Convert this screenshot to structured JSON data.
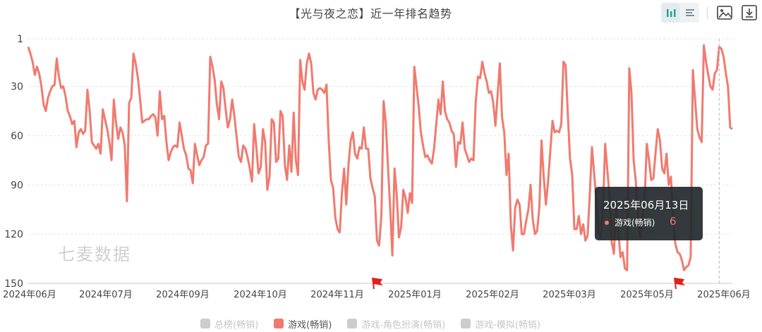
{
  "title": "【光与夜之恋】近一年排名趋势",
  "toolbar": {
    "icons": [
      "bar-chart-icon",
      "list-icon",
      "image-icon",
      "download-icon"
    ]
  },
  "watermark": "七麦数据",
  "tooltip": {
    "date": "2025年06月13日",
    "series_name": "游戏(畅销)",
    "value": "6"
  },
  "legend": [
    {
      "label": "总榜(畅销)",
      "active": false
    },
    {
      "label": "游戏(畅销)",
      "active": true
    },
    {
      "label": "游戏-角色扮演(畅销)",
      "active": false
    },
    {
      "label": "游戏-模拟(畅销)",
      "active": false
    }
  ],
  "colors": {
    "series": "#f07a6e",
    "grid": "#e3e3e3",
    "flag": "#e02020"
  },
  "chart_data": {
    "type": "line",
    "title": "【光与夜之恋】近一年排名趋势",
    "y_reversed": true,
    "ylim": [
      1,
      150
    ],
    "y_ticks": [
      "1",
      "30",
      "60",
      "90",
      "120",
      "150"
    ],
    "x_tick_labels": [
      "2024年06月",
      "2024年07月",
      "2024年09月",
      "2024年10月",
      "2024年11月",
      "2025年01月",
      "2025年02月",
      "2025年03月",
      "2025年05月",
      "2025年06月"
    ],
    "series": [
      {
        "name": "游戏(畅销)",
        "values": [
          6,
          10,
          15,
          23,
          18,
          22,
          30,
          41,
          45,
          37,
          33,
          30,
          29,
          13,
          24,
          31,
          30,
          36,
          45,
          48,
          53,
          51,
          67,
          58,
          56,
          59,
          57,
          32,
          45,
          64,
          66,
          68,
          65,
          71,
          44,
          50,
          56,
          64,
          75,
          38,
          52,
          62,
          55,
          58,
          66,
          100,
          40,
          37,
          10,
          16,
          25,
          38,
          52,
          51,
          50,
          50,
          48,
          47,
          49,
          60,
          33,
          50,
          48,
          64,
          75,
          70,
          67,
          66,
          67,
          52,
          60,
          68,
          72,
          80,
          81,
          89,
          65,
          72,
          78,
          75,
          73,
          66,
          65,
          12,
          18,
          26,
          41,
          50,
          27,
          31,
          44,
          55,
          50,
          38,
          48,
          61,
          73,
          76,
          66,
          68,
          73,
          80,
          88,
          53,
          67,
          83,
          79,
          56,
          64,
          93,
          85,
          50,
          52,
          76,
          74,
          45,
          48,
          78,
          87,
          66,
          82,
          46,
          75,
          84,
          14,
          27,
          32,
          16,
          10,
          16,
          34,
          38,
          32,
          31,
          32,
          34,
          29,
          63,
          87,
          92,
          110,
          117,
          119,
          95,
          80,
          102,
          78,
          63,
          58,
          71,
          74,
          67,
          68,
          55,
          68,
          68,
          86,
          92,
          97,
          124,
          127,
          108,
          39,
          52,
          79,
          104,
          133,
          80,
          96,
          122,
          116,
          93,
          98,
          107,
          95,
          101,
          18,
          30,
          42,
          58,
          66,
          73,
          72,
          75,
          77,
          68,
          53,
          38,
          47,
          27,
          45,
          50,
          52,
          57,
          59,
          79,
          64,
          65,
          52,
          68,
          72,
          76,
          74,
          75,
          40,
          24,
          25,
          15,
          22,
          27,
          34,
          33,
          40,
          54,
          35,
          16,
          49,
          58,
          84,
          71,
          114,
          130,
          104,
          99,
          102,
          120,
          120,
          112,
          105,
          90,
          111,
          120,
          118,
          104,
          63,
          85,
          102,
          88,
          69,
          51,
          58,
          57,
          58,
          53,
          15,
          17,
          47,
          74,
          84,
          117,
          117,
          109,
          120,
          114,
          124,
          121,
          96,
          67,
          83,
          100,
          119,
          122,
          105,
          65,
          81,
          97,
          125,
          132,
          102,
          118,
          134,
          131,
          141,
          142,
          19,
          34,
          75,
          88,
          111,
          122,
          110,
          100,
          65,
          75,
          87,
          86,
          70,
          56,
          63,
          80,
          83,
          71,
          90,
          85,
          110,
          126,
          131,
          132,
          136,
          142,
          140,
          139,
          134,
          20,
          38,
          56,
          61,
          64,
          5,
          15,
          23,
          30,
          32,
          22,
          20,
          6,
          7,
          12,
          22,
          30,
          55,
          56
        ]
      }
    ],
    "annotations": [
      {
        "type": "flag",
        "near_x_label": "2025年01月"
      },
      {
        "type": "flag",
        "near_x_label": "2025年06月"
      }
    ]
  }
}
